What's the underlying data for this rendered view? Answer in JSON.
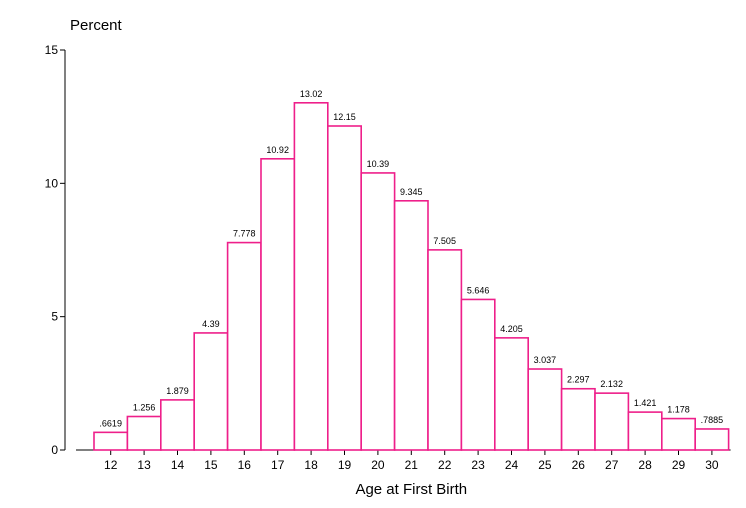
{
  "chart_data": {
    "type": "bar",
    "title": "",
    "xlabel": "Age at First Birth",
    "ylabel": "Percent",
    "categories": [
      "12",
      "13",
      "14",
      "15",
      "16",
      "17",
      "18",
      "19",
      "20",
      "21",
      "22",
      "23",
      "24",
      "25",
      "26",
      "27",
      "28",
      "29",
      "30"
    ],
    "values": [
      0.6619,
      1.256,
      1.879,
      4.39,
      7.778,
      10.92,
      13.02,
      12.15,
      10.39,
      9.345,
      7.505,
      5.646,
      4.205,
      3.037,
      2.297,
      2.132,
      1.421,
      1.178,
      0.7885
    ],
    "data_labels": [
      ".6619",
      "1.256",
      "1.879",
      "4.39",
      "7.778",
      "10.92",
      "13.02",
      "12.15",
      "10.39",
      "9.345",
      "7.505",
      "5.646",
      "4.205",
      "3.037",
      "2.297",
      "2.132",
      "1.421",
      "1.178",
      ".7885"
    ],
    "yticks": [
      0,
      5,
      10,
      15
    ],
    "ytick_labels": [
      "0",
      "5",
      "10",
      "15"
    ],
    "ylim": [
      0,
      15
    ],
    "grid": false,
    "bar_color": "#ee1f8a",
    "bar_fill": "#ffffff"
  }
}
